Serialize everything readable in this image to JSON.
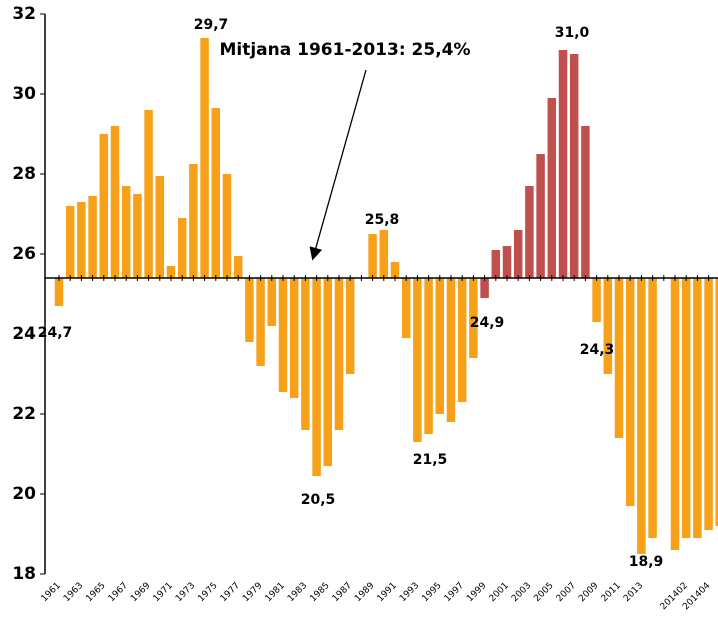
{
  "chart_data": {
    "type": "bar",
    "title": "Mitjana 1961-2013: 25,4%",
    "baseline": 25.4,
    "categories": [
      "1961",
      null,
      "1963",
      null,
      "1965",
      null,
      "1967",
      null,
      "1969",
      null,
      "1971",
      null,
      "1973",
      null,
      "1975",
      null,
      "1977",
      null,
      "1979",
      null,
      "1981",
      null,
      "1983",
      null,
      "1985",
      null,
      "1987",
      null,
      "1989",
      null,
      "1991",
      null,
      "1993",
      null,
      "1995",
      null,
      "1997",
      null,
      "1999",
      null,
      "2001",
      null,
      "2003",
      null,
      "2005",
      null,
      "2007",
      null,
      "2009",
      null,
      "2011",
      null,
      "2013",
      null,
      null,
      null,
      "201402",
      null,
      "201404",
      null
    ],
    "series": [
      {
        "color": "#f7a11a",
        "values": [
          24.7,
          27.2,
          27.3,
          27.45,
          29.0,
          29.2,
          27.7,
          27.5,
          29.6,
          27.95,
          25.7,
          26.9,
          28.25,
          31.4,
          29.65,
          28.0,
          25.95,
          23.8,
          23.2,
          24.2,
          22.55,
          22.4,
          21.6,
          20.45,
          20.7,
          21.6,
          23.0,
          null,
          26.5,
          26.6,
          25.8,
          23.9,
          21.3,
          21.5,
          22.0,
          21.8,
          22.3,
          23.4,
          null,
          null,
          null,
          null,
          null,
          null,
          null,
          null,
          null,
          null,
          24.3,
          23.0,
          21.4,
          19.7,
          18.5,
          18.9,
          null,
          18.6,
          18.9,
          18.9,
          19.1,
          19.2
        ]
      },
      {
        "color": "#c0504d",
        "values": [
          null,
          null,
          null,
          null,
          null,
          null,
          null,
          null,
          null,
          null,
          null,
          null,
          null,
          null,
          null,
          null,
          null,
          null,
          null,
          null,
          null,
          null,
          null,
          null,
          null,
          null,
          null,
          null,
          null,
          null,
          null,
          null,
          null,
          null,
          null,
          null,
          null,
          null,
          24.9,
          26.1,
          26.2,
          26.6,
          27.7,
          28.5,
          29.9,
          31.1,
          31.0,
          29.2,
          null,
          null,
          null,
          null,
          null,
          null,
          null,
          null,
          null,
          null,
          null,
          null
        ]
      }
    ],
    "annotations": [
      "24,7",
      "29,7",
      "20,5",
      "25,8",
      "21,5",
      "24,9",
      "31,0",
      "24,3",
      "18,9"
    ],
    "ylim": [
      18,
      32
    ],
    "yticks": [
      18,
      20,
      22,
      24,
      26,
      28,
      30,
      32
    ]
  }
}
